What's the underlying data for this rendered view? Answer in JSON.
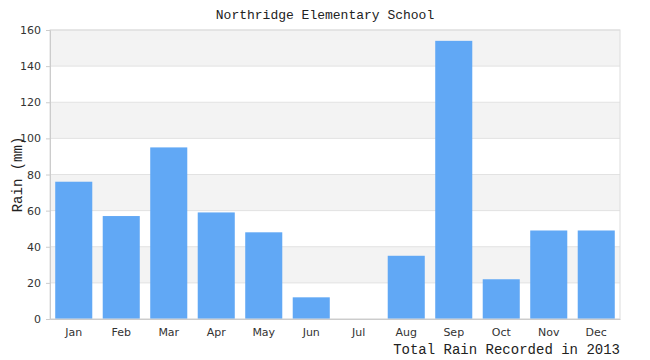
{
  "chart_data": {
    "type": "bar",
    "title": "Northridge Elementary School",
    "y_label": "Rain (mm)",
    "x_label": "Total Rain Recorded in 2013",
    "categories": [
      "Jan",
      "Feb",
      "Mar",
      "Apr",
      "May",
      "Jun",
      "Jul",
      "Aug",
      "Sep",
      "Oct",
      "Nov",
      "Dec"
    ],
    "values": [
      76,
      57,
      95,
      59,
      48,
      12,
      0,
      35,
      154,
      22,
      49,
      49
    ],
    "color": "#61a8f5",
    "ylim": [
      0,
      160
    ],
    "yticks": [
      0,
      20,
      40,
      60,
      80,
      100,
      120,
      140,
      160
    ],
    "grid": true
  }
}
